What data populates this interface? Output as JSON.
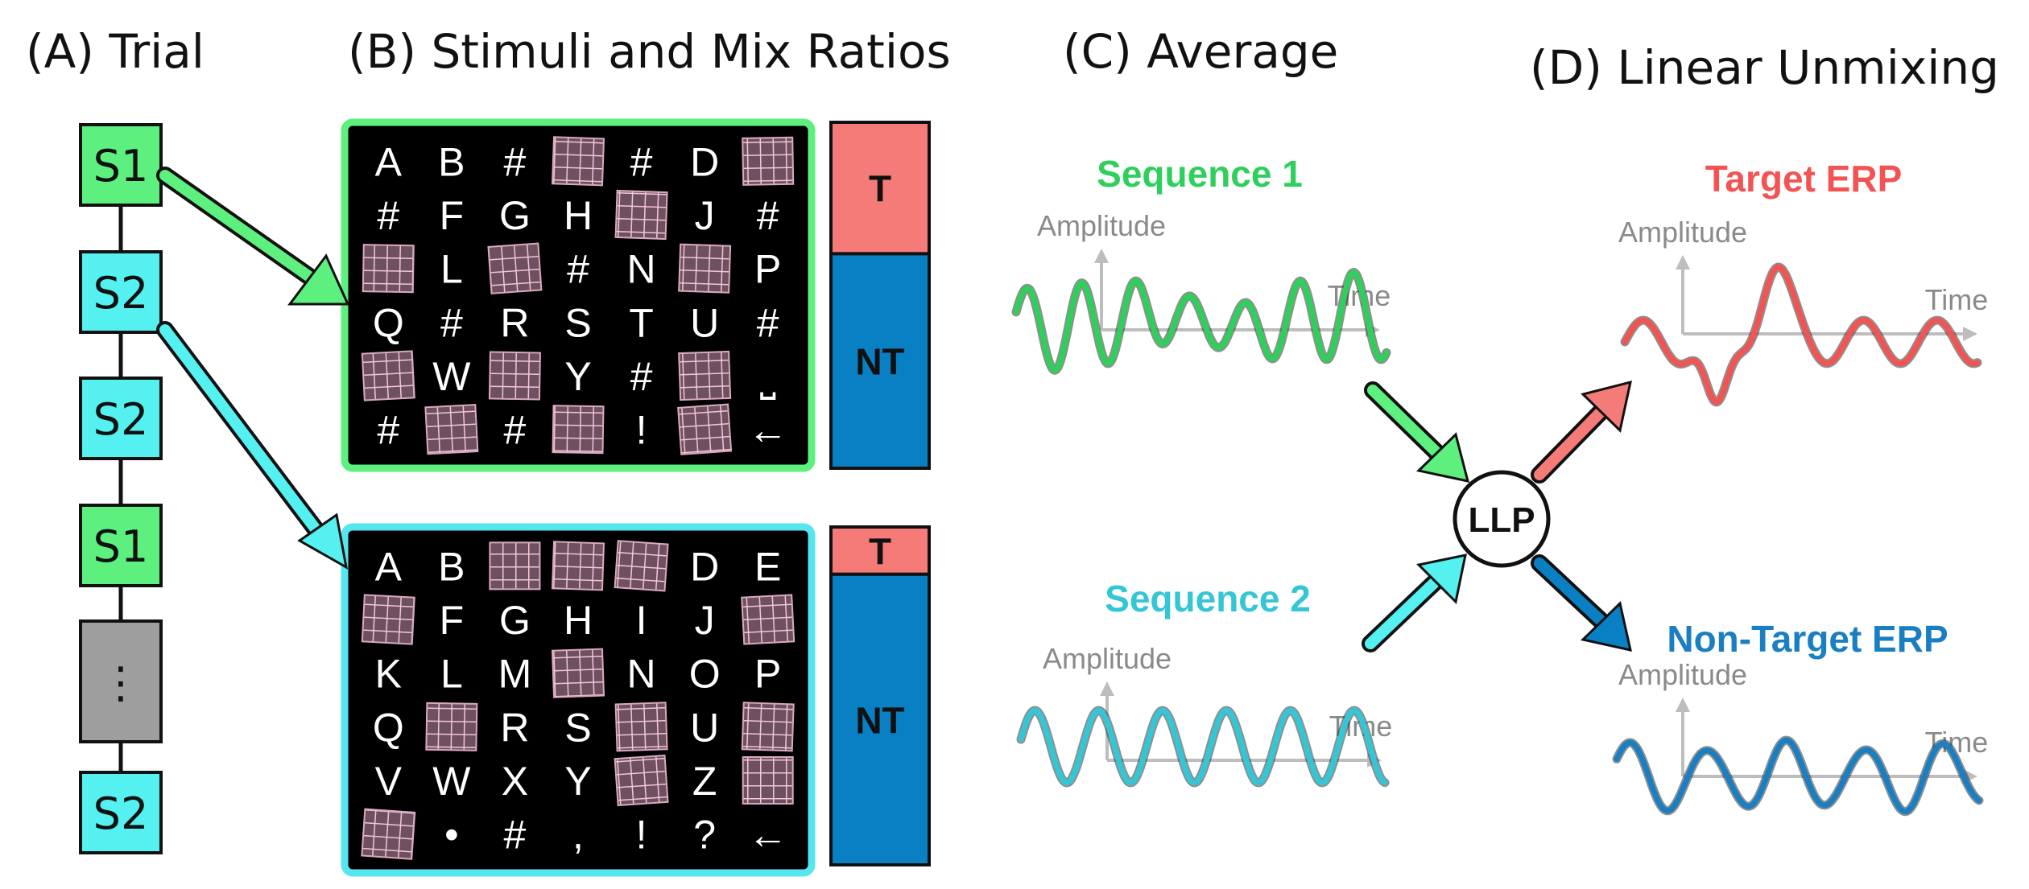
{
  "panels": {
    "a": "(A) Trial",
    "b": "(B) Stimuli and Mix Ratios",
    "c": "(C) Average",
    "d": "(D) Linear Unmixing"
  },
  "trial": {
    "boxes": [
      {
        "label": "S1",
        "kind": "s1"
      },
      {
        "label": "S2",
        "kind": "s2"
      },
      {
        "label": "S2",
        "kind": "s2"
      },
      {
        "label": "S1",
        "kind": "s1"
      },
      {
        "label": "⋮",
        "kind": "more"
      },
      {
        "label": "S2",
        "kind": "s2"
      }
    ]
  },
  "grids": [
    {
      "border": "#5ef07f",
      "rows": [
        [
          "A",
          "B",
          "#",
          "#HL",
          "#",
          "D",
          "#HL"
        ],
        [
          "#",
          "F",
          "G",
          "H",
          "#HL",
          "J",
          "#"
        ],
        [
          "#HL",
          "L",
          "#HL",
          "#",
          "N",
          "#HL",
          "P"
        ],
        [
          "Q",
          "#",
          "R",
          "S",
          "T",
          "U",
          "#"
        ],
        [
          "#HL",
          "W",
          "#HL",
          "Y",
          "#",
          "#HL",
          "⎵"
        ],
        [
          "#",
          "#HL",
          "#",
          "#HL",
          "!",
          "#HL",
          "←"
        ]
      ]
    },
    {
      "border": "#55e6f0",
      "rows": [
        [
          "A",
          "B",
          "#HL",
          "#HL",
          "#HL",
          "D",
          "E"
        ],
        [
          "#HL",
          "F",
          "G",
          "H",
          "I",
          "J",
          "#HL"
        ],
        [
          "K",
          "L",
          "M",
          "#HL",
          "N",
          "O",
          "P"
        ],
        [
          "Q",
          "#HL",
          "R",
          "S",
          "#HL",
          "U",
          "#HL"
        ],
        [
          "V",
          "W",
          "X",
          "Y",
          "#HL",
          "Z",
          "#HL"
        ],
        [
          "#HL",
          "•",
          "#",
          ",",
          "!",
          "?",
          "←"
        ]
      ]
    }
  ],
  "mix_ratios": [
    {
      "t_label": "T",
      "nt_label": "NT",
      "t_fraction": 0.38
    },
    {
      "t_label": "T",
      "nt_label": "NT",
      "t_fraction": 0.14
    }
  ],
  "signals": {
    "seq1": {
      "title": "Sequence 1",
      "y_label": "Amplitude",
      "x_label": "Time",
      "color": "#2fcf5c"
    },
    "seq2": {
      "title": "Sequence 2",
      "y_label": "Amplitude",
      "x_label": "Time",
      "color": "#35c6d6"
    },
    "target": {
      "title": "Target ERP",
      "y_label": "Amplitude",
      "x_label": "Time",
      "color": "#f25454"
    },
    "nontarget": {
      "title": "Non-Target ERP",
      "y_label": "Amplitude",
      "x_label": "Time",
      "color": "#1a7fc2"
    }
  },
  "llp_label": "LLP",
  "colors": {
    "s1": "#5ef07f",
    "s2": "#55f0f0",
    "more": "#9e9e9e",
    "t": "#f47b78",
    "nt": "#0a80c4",
    "arrow_green": "#5ef07f",
    "arrow_cyan": "#55f0f0",
    "arrow_red": "#f47b78",
    "arrow_blue": "#0a80c4"
  }
}
